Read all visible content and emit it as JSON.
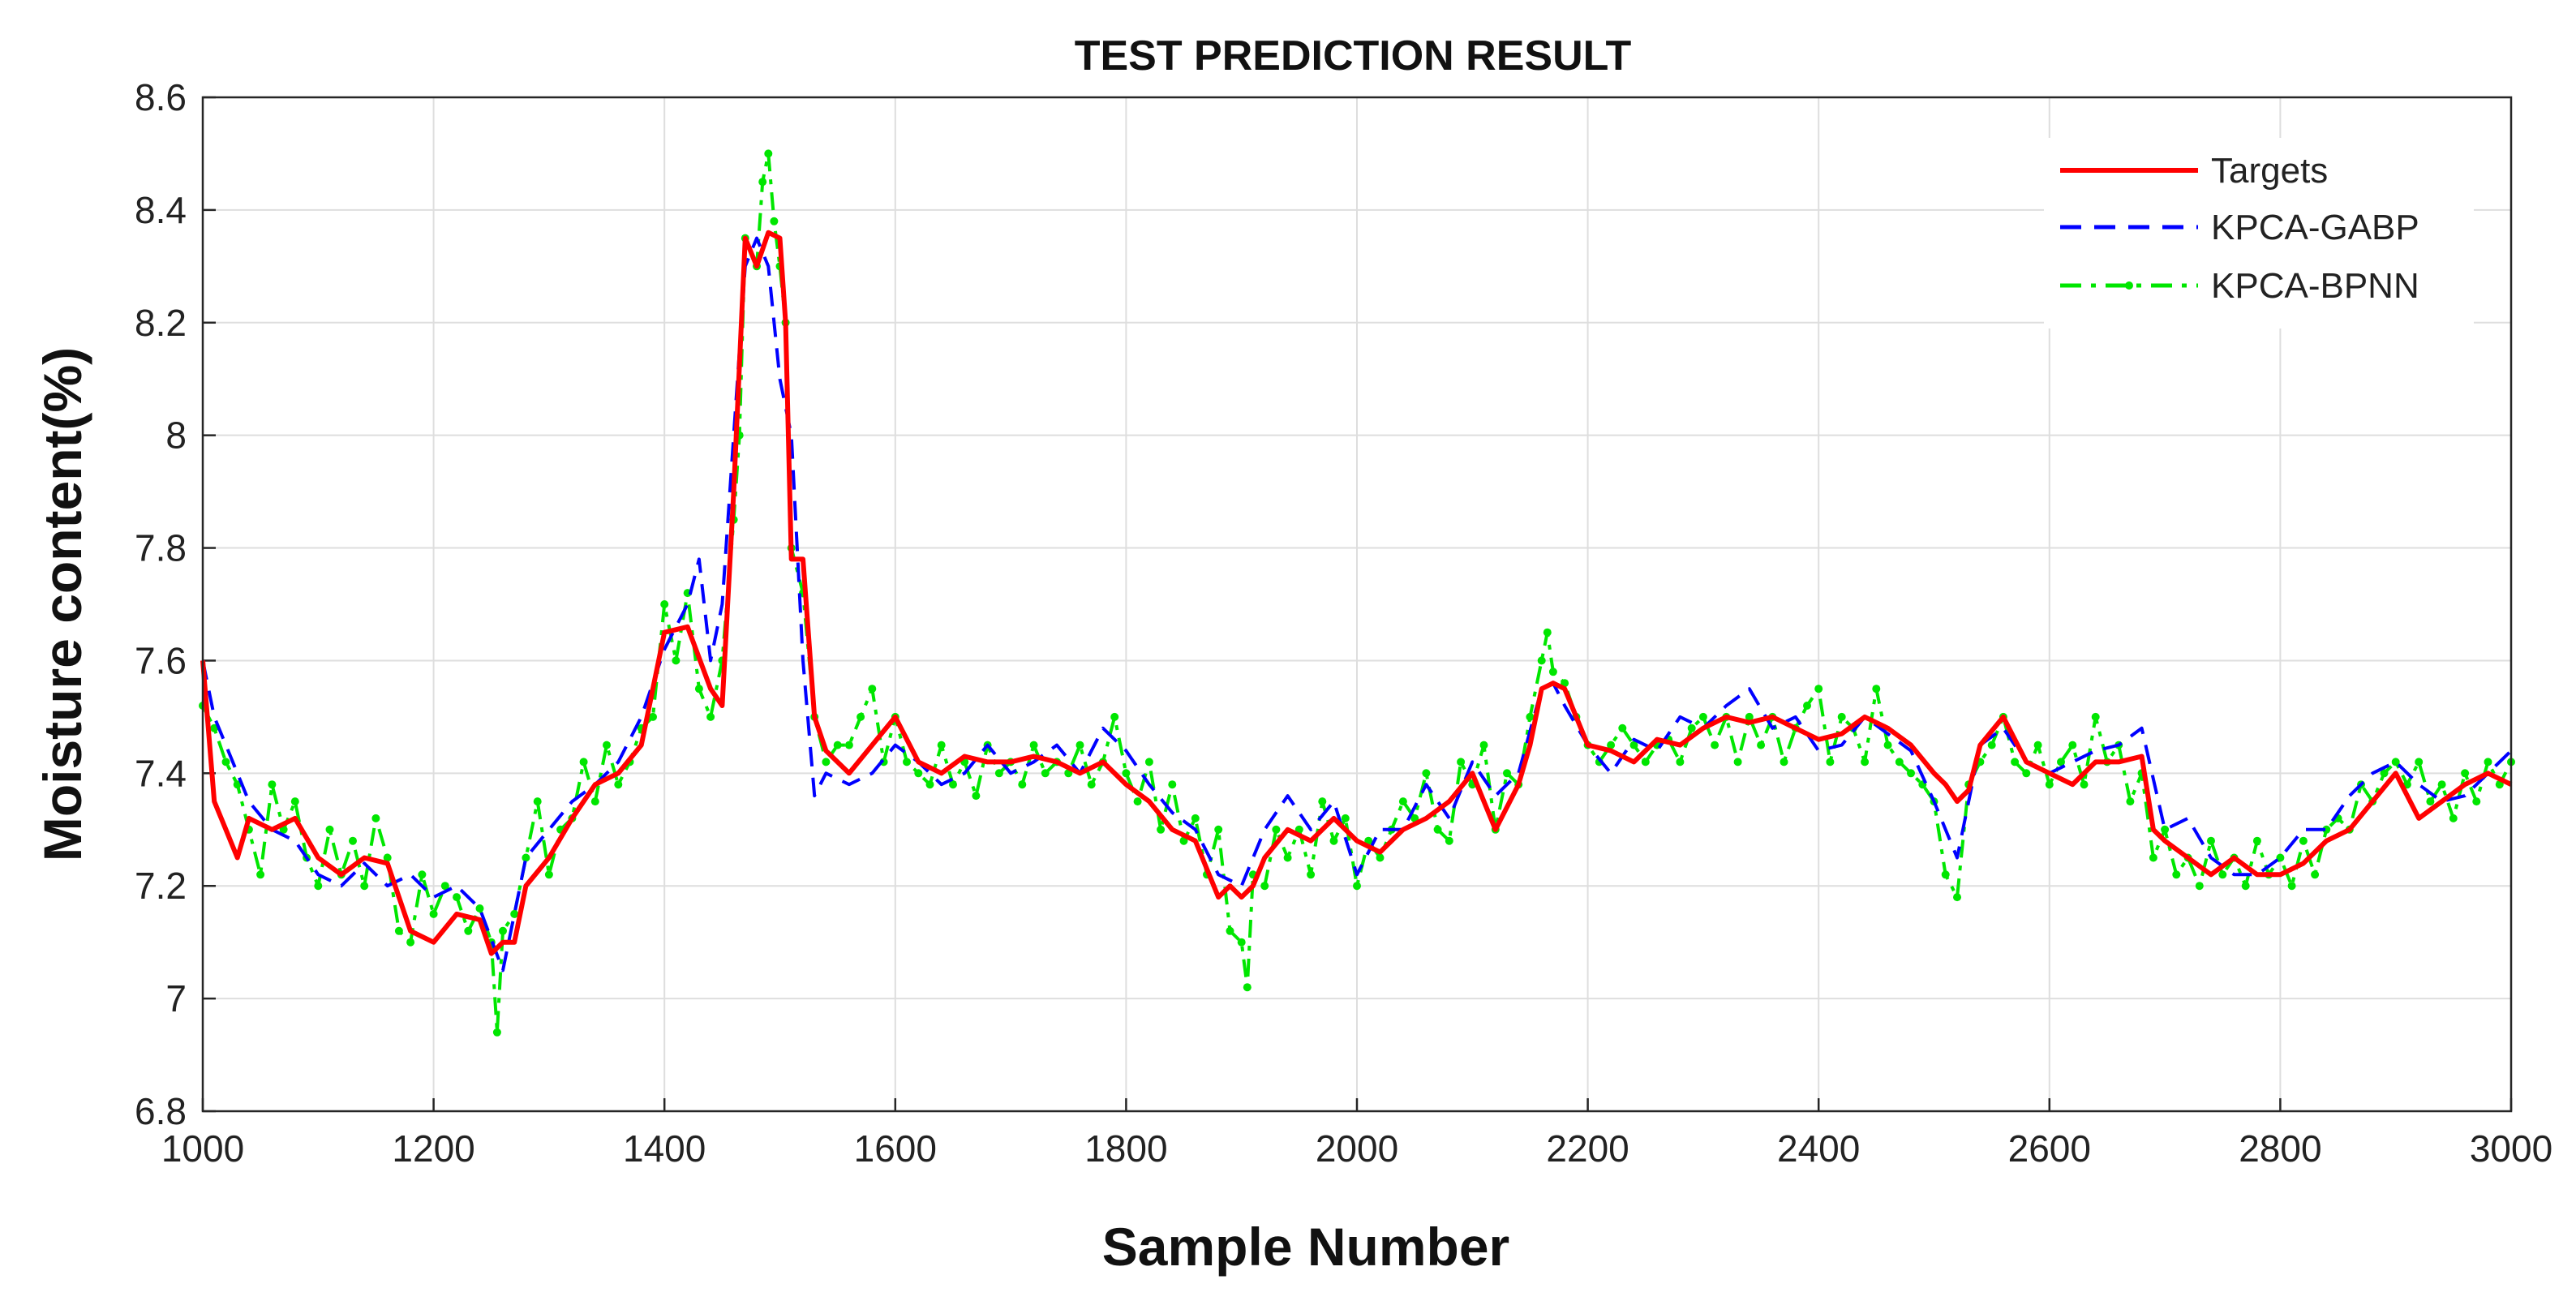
{
  "chart_data": {
    "type": "line",
    "title": "TEST PREDICTION RESULT",
    "xlabel": "Sample Number",
    "ylabel": "Moisture content(%)",
    "xlim": [
      1000,
      3000
    ],
    "ylim": [
      6.8,
      8.6
    ],
    "xticks": [
      1000,
      1200,
      1400,
      1600,
      1800,
      2000,
      2200,
      2400,
      2600,
      2800,
      3000
    ],
    "yticks": [
      6.8,
      7,
      7.2,
      7.4,
      7.6,
      7.8,
      8,
      8.2,
      8.4,
      8.6
    ],
    "xtick_labels": [
      "1000",
      "1200",
      "1400",
      "1600",
      "1800",
      "2000",
      "2200",
      "2400",
      "2600",
      "2800",
      "3000"
    ],
    "ytick_labels": [
      "6.8",
      "7",
      "7.2",
      "7.4",
      "7.6",
      "7.8",
      "8",
      "8.2",
      "8.4",
      "8.6"
    ],
    "grid": true,
    "legend_position": "top-right",
    "series": [
      {
        "name": "Targets",
        "color": "#ff0000",
        "style": "solid",
        "x": [
          1000,
          1010,
          1020,
          1030,
          1040,
          1060,
          1080,
          1100,
          1120,
          1140,
          1160,
          1170,
          1180,
          1200,
          1220,
          1240,
          1250,
          1260,
          1270,
          1280,
          1300,
          1320,
          1340,
          1360,
          1380,
          1400,
          1420,
          1440,
          1450,
          1460,
          1470,
          1480,
          1490,
          1500,
          1505,
          1510,
          1520,
          1530,
          1540,
          1560,
          1580,
          1600,
          1620,
          1640,
          1660,
          1680,
          1700,
          1720,
          1740,
          1760,
          1780,
          1800,
          1820,
          1840,
          1860,
          1880,
          1890,
          1900,
          1910,
          1920,
          1940,
          1960,
          1980,
          2000,
          2020,
          2040,
          2060,
          2080,
          2100,
          2120,
          2140,
          2150,
          2160,
          2170,
          2180,
          2190,
          2200,
          2220,
          2240,
          2260,
          2280,
          2300,
          2320,
          2340,
          2360,
          2380,
          2400,
          2420,
          2440,
          2460,
          2480,
          2500,
          2510,
          2520,
          2530,
          2540,
          2560,
          2580,
          2600,
          2620,
          2640,
          2660,
          2680,
          2690,
          2700,
          2720,
          2740,
          2760,
          2780,
          2800,
          2820,
          2840,
          2860,
          2880,
          2900,
          2920,
          2940,
          2960,
          2980,
          3000
        ],
        "y": [
          7.6,
          7.35,
          7.3,
          7.25,
          7.32,
          7.3,
          7.32,
          7.25,
          7.22,
          7.25,
          7.24,
          7.18,
          7.12,
          7.1,
          7.15,
          7.14,
          7.08,
          7.1,
          7.1,
          7.2,
          7.25,
          7.32,
          7.38,
          7.4,
          7.45,
          7.65,
          7.66,
          7.55,
          7.52,
          7.9,
          8.35,
          8.3,
          8.36,
          8.35,
          8.2,
          7.78,
          7.78,
          7.5,
          7.44,
          7.4,
          7.45,
          7.5,
          7.42,
          7.4,
          7.43,
          7.42,
          7.42,
          7.43,
          7.42,
          7.4,
          7.42,
          7.38,
          7.35,
          7.3,
          7.28,
          7.18,
          7.2,
          7.18,
          7.2,
          7.25,
          7.3,
          7.28,
          7.32,
          7.28,
          7.26,
          7.3,
          7.32,
          7.35,
          7.4,
          7.3,
          7.38,
          7.45,
          7.55,
          7.56,
          7.55,
          7.5,
          7.45,
          7.44,
          7.42,
          7.46,
          7.45,
          7.48,
          7.5,
          7.49,
          7.5,
          7.48,
          7.46,
          7.47,
          7.5,
          7.48,
          7.45,
          7.4,
          7.38,
          7.35,
          7.37,
          7.45,
          7.5,
          7.42,
          7.4,
          7.38,
          7.42,
          7.42,
          7.43,
          7.3,
          7.28,
          7.25,
          7.22,
          7.25,
          7.22,
          7.22,
          7.24,
          7.28,
          7.3,
          7.35,
          7.4,
          7.32,
          7.35,
          7.38,
          7.4,
          7.38
        ]
      },
      {
        "name": "KPCA-GABP",
        "color": "#0000ff",
        "style": "dashed",
        "x": [
          1000,
          1010,
          1020,
          1040,
          1060,
          1080,
          1100,
          1120,
          1140,
          1160,
          1180,
          1200,
          1220,
          1240,
          1260,
          1270,
          1280,
          1300,
          1320,
          1340,
          1360,
          1380,
          1400,
          1420,
          1430,
          1440,
          1450,
          1460,
          1470,
          1480,
          1490,
          1500,
          1510,
          1520,
          1530,
          1540,
          1560,
          1580,
          1600,
          1620,
          1640,
          1660,
          1680,
          1700,
          1720,
          1740,
          1760,
          1780,
          1800,
          1820,
          1840,
          1860,
          1880,
          1900,
          1920,
          1940,
          1960,
          1980,
          2000,
          2020,
          2040,
          2060,
          2080,
          2100,
          2120,
          2140,
          2160,
          2170,
          2180,
          2200,
          2220,
          2240,
          2260,
          2280,
          2300,
          2320,
          2340,
          2360,
          2380,
          2400,
          2420,
          2440,
          2460,
          2480,
          2500,
          2520,
          2540,
          2560,
          2580,
          2600,
          2620,
          2640,
          2660,
          2680,
          2700,
          2720,
          2740,
          2760,
          2780,
          2800,
          2820,
          2840,
          2860,
          2880,
          2900,
          2920,
          2940,
          2960,
          2980,
          3000
        ],
        "y": [
          7.6,
          7.5,
          7.45,
          7.35,
          7.3,
          7.28,
          7.22,
          7.2,
          7.24,
          7.2,
          7.22,
          7.18,
          7.2,
          7.16,
          7.05,
          7.15,
          7.25,
          7.3,
          7.35,
          7.38,
          7.42,
          7.5,
          7.62,
          7.7,
          7.78,
          7.6,
          7.7,
          8.0,
          8.3,
          8.35,
          8.3,
          8.1,
          8.0,
          7.6,
          7.36,
          7.4,
          7.38,
          7.4,
          7.45,
          7.42,
          7.38,
          7.4,
          7.45,
          7.4,
          7.42,
          7.45,
          7.4,
          7.48,
          7.44,
          7.38,
          7.33,
          7.3,
          7.22,
          7.2,
          7.3,
          7.36,
          7.3,
          7.35,
          7.22,
          7.3,
          7.3,
          7.38,
          7.32,
          7.42,
          7.36,
          7.4,
          7.55,
          7.56,
          7.52,
          7.45,
          7.4,
          7.46,
          7.44,
          7.5,
          7.48,
          7.52,
          7.55,
          7.48,
          7.5,
          7.44,
          7.45,
          7.5,
          7.47,
          7.44,
          7.35,
          7.25,
          7.45,
          7.48,
          7.42,
          7.4,
          7.42,
          7.44,
          7.45,
          7.48,
          7.3,
          7.32,
          7.25,
          7.22,
          7.22,
          7.25,
          7.3,
          7.3,
          7.36,
          7.4,
          7.42,
          7.38,
          7.35,
          7.36,
          7.4,
          7.44
        ]
      },
      {
        "name": "KPCA-BPNN",
        "color": "#00e600",
        "style": "dash-dot",
        "marker": "point",
        "x": [
          1000,
          1010,
          1020,
          1030,
          1040,
          1050,
          1060,
          1070,
          1080,
          1090,
          1100,
          1110,
          1120,
          1130,
          1140,
          1150,
          1160,
          1170,
          1180,
          1190,
          1200,
          1210,
          1220,
          1230,
          1240,
          1250,
          1255,
          1260,
          1270,
          1280,
          1290,
          1300,
          1310,
          1320,
          1330,
          1340,
          1350,
          1360,
          1370,
          1380,
          1390,
          1400,
          1410,
          1420,
          1430,
          1440,
          1450,
          1460,
          1465,
          1470,
          1480,
          1485,
          1490,
          1495,
          1500,
          1505,
          1510,
          1520,
          1530,
          1540,
          1550,
          1560,
          1570,
          1580,
          1590,
          1600,
          1610,
          1620,
          1630,
          1640,
          1650,
          1660,
          1670,
          1680,
          1690,
          1700,
          1710,
          1720,
          1730,
          1740,
          1750,
          1760,
          1770,
          1780,
          1790,
          1800,
          1810,
          1820,
          1830,
          1840,
          1850,
          1860,
          1870,
          1880,
          1890,
          1900,
          1905,
          1910,
          1920,
          1930,
          1940,
          1950,
          1960,
          1970,
          1980,
          1990,
          2000,
          2010,
          2020,
          2030,
          2040,
          2050,
          2060,
          2070,
          2080,
          2090,
          2100,
          2110,
          2120,
          2130,
          2140,
          2150,
          2160,
          2165,
          2170,
          2180,
          2190,
          2200,
          2210,
          2220,
          2230,
          2240,
          2250,
          2260,
          2270,
          2280,
          2290,
          2300,
          2310,
          2320,
          2330,
          2340,
          2350,
          2360,
          2370,
          2380,
          2390,
          2400,
          2410,
          2420,
          2430,
          2440,
          2450,
          2460,
          2470,
          2480,
          2490,
          2500,
          2510,
          2520,
          2530,
          2540,
          2550,
          2560,
          2570,
          2580,
          2590,
          2600,
          2610,
          2620,
          2630,
          2640,
          2650,
          2660,
          2670,
          2680,
          2690,
          2700,
          2710,
          2720,
          2730,
          2740,
          2750,
          2760,
          2770,
          2780,
          2790,
          2800,
          2810,
          2820,
          2830,
          2840,
          2850,
          2860,
          2870,
          2880,
          2890,
          2900,
          2910,
          2920,
          2930,
          2940,
          2950,
          2960,
          2970,
          2980,
          2990,
          3000
        ],
        "y": [
          7.52,
          7.48,
          7.42,
          7.38,
          7.3,
          7.22,
          7.38,
          7.3,
          7.35,
          7.25,
          7.2,
          7.3,
          7.22,
          7.28,
          7.2,
          7.32,
          7.25,
          7.12,
          7.1,
          7.22,
          7.15,
          7.2,
          7.18,
          7.12,
          7.16,
          7.1,
          6.94,
          7.12,
          7.15,
          7.25,
          7.35,
          7.22,
          7.3,
          7.32,
          7.42,
          7.35,
          7.45,
          7.38,
          7.42,
          7.48,
          7.5,
          7.7,
          7.6,
          7.72,
          7.55,
          7.5,
          7.6,
          7.85,
          8.0,
          8.35,
          8.3,
          8.45,
          8.5,
          8.38,
          8.3,
          8.2,
          7.8,
          7.72,
          7.5,
          7.42,
          7.45,
          7.45,
          7.5,
          7.55,
          7.42,
          7.5,
          7.42,
          7.4,
          7.38,
          7.45,
          7.38,
          7.42,
          7.36,
          7.45,
          7.4,
          7.42,
          7.38,
          7.45,
          7.4,
          7.42,
          7.4,
          7.45,
          7.38,
          7.42,
          7.5,
          7.4,
          7.35,
          7.42,
          7.3,
          7.38,
          7.28,
          7.32,
          7.22,
          7.3,
          7.12,
          7.1,
          7.02,
          7.22,
          7.2,
          7.3,
          7.25,
          7.3,
          7.22,
          7.35,
          7.28,
          7.32,
          7.2,
          7.28,
          7.25,
          7.3,
          7.35,
          7.32,
          7.4,
          7.3,
          7.28,
          7.42,
          7.38,
          7.45,
          7.3,
          7.4,
          7.38,
          7.5,
          7.6,
          7.65,
          7.58,
          7.56,
          7.5,
          7.45,
          7.42,
          7.45,
          7.48,
          7.45,
          7.42,
          7.45,
          7.46,
          7.42,
          7.48,
          7.5,
          7.45,
          7.5,
          7.42,
          7.5,
          7.45,
          7.5,
          7.42,
          7.48,
          7.52,
          7.55,
          7.42,
          7.5,
          7.48,
          7.42,
          7.55,
          7.45,
          7.42,
          7.4,
          7.38,
          7.35,
          7.22,
          7.18,
          7.38,
          7.42,
          7.45,
          7.5,
          7.42,
          7.4,
          7.45,
          7.38,
          7.42,
          7.45,
          7.38,
          7.5,
          7.42,
          7.45,
          7.35,
          7.4,
          7.25,
          7.3,
          7.22,
          7.25,
          7.2,
          7.28,
          7.22,
          7.25,
          7.2,
          7.28,
          7.22,
          7.25,
          7.2,
          7.28,
          7.22,
          7.3,
          7.32,
          7.3,
          7.38,
          7.35,
          7.4,
          7.42,
          7.38,
          7.42,
          7.35,
          7.38,
          7.32,
          7.4,
          7.35,
          7.42,
          7.38,
          7.42
        ]
      }
    ]
  }
}
